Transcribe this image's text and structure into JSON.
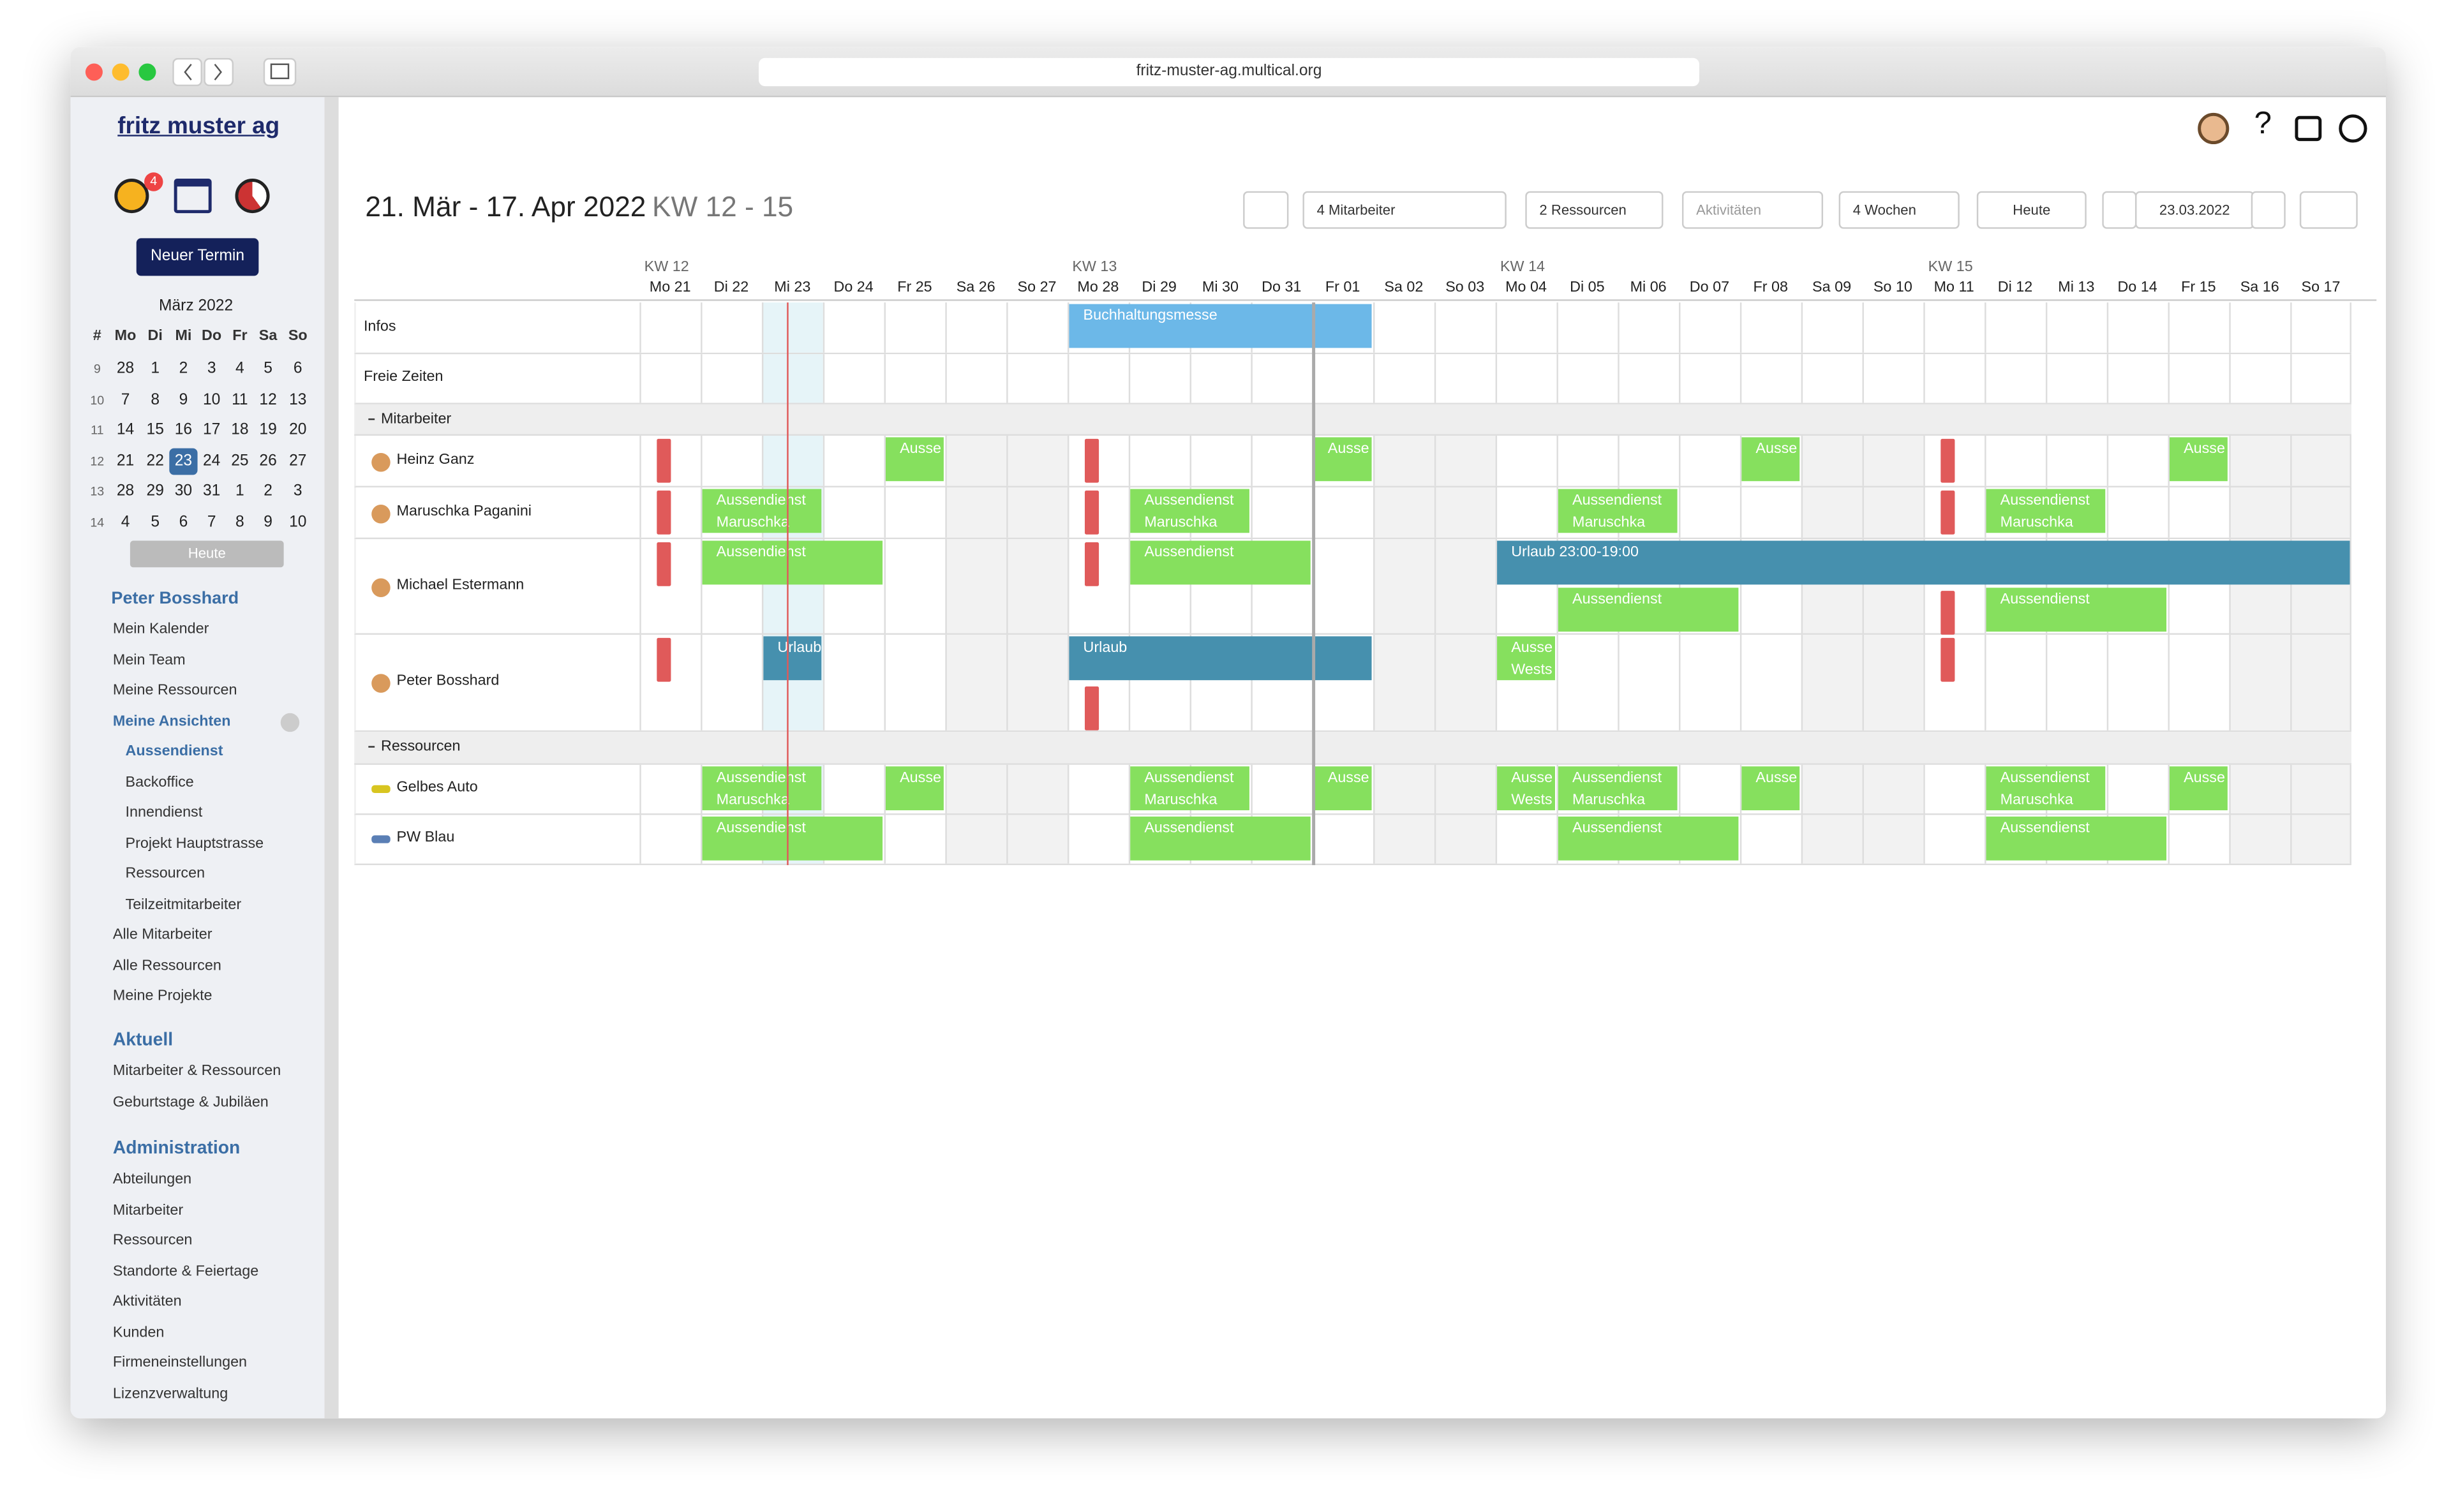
{
  "browser": {
    "url": "fritz-muster-ag.multical.org"
  },
  "sidebar": {
    "logo": "fritz muster ag",
    "notification_count": "4",
    "new_button": "Neuer Termin",
    "calendar": {
      "month": "März 2022",
      "weekdays": [
        "#",
        "Mo",
        "Di",
        "Mi",
        "Do",
        "Fr",
        "Sa",
        "So"
      ],
      "weeks": [
        [
          "9",
          "28",
          "1",
          "2",
          "3",
          "4",
          "5",
          "6"
        ],
        [
          "10",
          "7",
          "8",
          "9",
          "10",
          "11",
          "12",
          "13"
        ],
        [
          "11",
          "14",
          "15",
          "16",
          "17",
          "18",
          "19",
          "20"
        ],
        [
          "12",
          "21",
          "22",
          "23",
          "24",
          "25",
          "26",
          "27"
        ],
        [
          "13",
          "28",
          "29",
          "30",
          "31",
          "1",
          "2",
          "3"
        ],
        [
          "14",
          "4",
          "5",
          "6",
          "7",
          "8",
          "9",
          "10"
        ]
      ],
      "today_button": "Heute"
    },
    "user": "Peter Bosshard",
    "my_items": [
      "Mein Kalender",
      "Mein Team",
      "Meine Ressourcen"
    ],
    "views_label": "Meine Ansichten",
    "views": [
      "Aussendienst",
      "Backoffice",
      "Innendienst",
      "Projekt Hauptstrasse",
      "Ressourcen",
      "Teilzeitmitarbeiter"
    ],
    "more_items": [
      "Alle Mitarbeiter",
      "Alle Ressourcen",
      "Meine Projekte"
    ],
    "sections": [
      {
        "title": "Aktuell",
        "items": [
          "Mitarbeiter & Ressourcen",
          "Geburtstage & Jubiläen"
        ]
      },
      {
        "title": "Administration",
        "items": [
          "Abteilungen",
          "Mitarbeiter",
          "Ressourcen",
          "Standorte & Feiertage",
          "Aktivitäten",
          "Kunden",
          "Firmeneinstellungen",
          "Lizenzverwaltung"
        ]
      }
    ]
  },
  "header": {
    "help": "?",
    "title": "21. Mär - 17. Apr 2022",
    "weeks_range": "KW 12 - 15",
    "toolbar": {
      "employees": "4 Mitarbeiter",
      "resources": "2 Ressourcen",
      "activities": "Aktivitäten",
      "period": "4 Wochen",
      "today": "Heute",
      "date": "23.03.2022"
    }
  },
  "schedule": {
    "weeks": [
      "KW 12",
      "KW 13",
      "KW 14",
      "KW 15"
    ],
    "days": [
      "Mo 21",
      "Di 22",
      "Mi 23",
      "Do 24",
      "Fr 25",
      "Sa 26",
      "So 27",
      "Mo 28",
      "Di 29",
      "Mi 30",
      "Do 31",
      "Fr 01",
      "Sa 02",
      "So 03",
      "Mo 04",
      "Di 05",
      "Mi 06",
      "Do 07",
      "Fr 08",
      "Sa 09",
      "So 10",
      "Mo 11",
      "Di 12",
      "Mi 13",
      "Do 14",
      "Fr 15",
      "Sa 16",
      "So 17"
    ],
    "rows": [
      {
        "label": "Infos",
        "events": [
          {
            "lines": [
              "Buchhaltungsmesse"
            ]
          }
        ]
      },
      {
        "label": "Freie Zeiten",
        "events": []
      },
      {
        "group": "Mitarbeiter"
      },
      {
        "label": "Heinz Ganz",
        "events": [
          {
            "lines": [
              "Ausse"
            ]
          },
          {
            "lines": [
              "Ausse"
            ]
          },
          {
            "lines": [
              "Ausse"
            ]
          },
          {
            "lines": [
              "Ausse"
            ]
          }
        ]
      },
      {
        "label": "Maruschka Paganini",
        "events": [
          {
            "lines": [
              "Aussendienst",
              "Maruschka"
            ]
          },
          {
            "lines": [
              "Aussendienst",
              "Maruschka"
            ]
          },
          {
            "lines": [
              "Aussendienst",
              "Maruschka"
            ]
          },
          {
            "lines": [
              "Aussendienst",
              "Maruschka"
            ]
          }
        ]
      },
      {
        "label": "Michael Estermann",
        "events": [
          {
            "lines": [
              "Aussendienst"
            ]
          },
          {
            "lines": [
              "Aussendienst"
            ]
          },
          {
            "lines": [
              "Urlaub 23:00-19:00"
            ]
          },
          {
            "lines": [
              "Aussendienst"
            ]
          },
          {
            "lines": [
              "Aussendienst"
            ]
          }
        ]
      },
      {
        "label": "Peter Bosshard",
        "events": [
          {
            "lines": [
              "Urlaub"
            ]
          },
          {
            "lines": [
              "Urlaub"
            ]
          },
          {
            "lines": [
              "Ausse",
              "Wests"
            ]
          }
        ]
      },
      {
        "group": "Ressourcen"
      },
      {
        "label": "Gelbes Auto",
        "events": [
          {
            "lines": [
              "Aussendienst",
              "Maruschka"
            ]
          },
          {
            "lines": [
              "Ausse"
            ]
          },
          {
            "lines": [
              "Aussendienst",
              "Maruschka"
            ]
          },
          {
            "lines": [
              "Ausse"
            ]
          },
          {
            "lines": [
              "Ausse",
              "Wests"
            ]
          },
          {
            "lines": [
              "Aussendienst",
              "Maruschka"
            ]
          },
          {
            "lines": [
              "Ausse"
            ]
          },
          {
            "lines": [
              "Aussendienst",
              "Maruschka"
            ]
          },
          {
            "lines": [
              "Ausse"
            ]
          }
        ]
      },
      {
        "label": "PW Blau",
        "events": [
          {
            "lines": [
              "Aussendienst"
            ]
          },
          {
            "lines": [
              "Aussendienst"
            ]
          },
          {
            "lines": [
              "Aussendienst"
            ]
          },
          {
            "lines": [
              "Aussendienst"
            ]
          }
        ]
      }
    ]
  }
}
